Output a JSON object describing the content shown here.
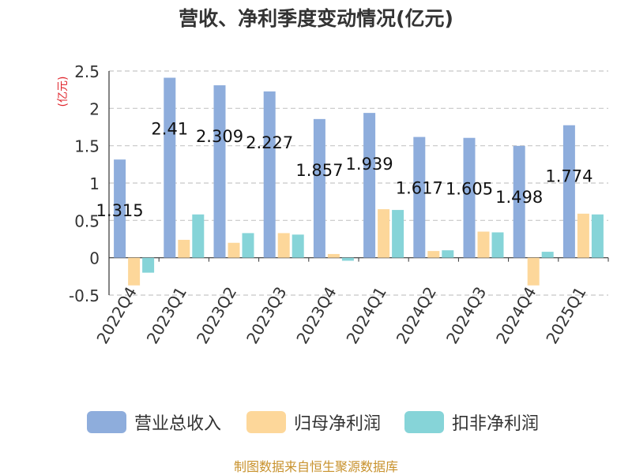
{
  "chart_data": {
    "type": "bar",
    "title": "营收、净利季度变动情况(亿元)",
    "ylabel": "(亿元)",
    "categories": [
      "2022Q4",
      "2023Q1",
      "2023Q2",
      "2023Q3",
      "2023Q4",
      "2024Q1",
      "2024Q2",
      "2024Q3",
      "2024Q4",
      "2025Q1"
    ],
    "series": [
      {
        "name": "营业总收入",
        "color": "#8eaddc",
        "values": [
          1.315,
          2.41,
          2.309,
          2.227,
          1.857,
          1.939,
          1.617,
          1.605,
          1.498,
          1.774
        ]
      },
      {
        "name": "归母净利润",
        "color": "#fdd79a",
        "values": [
          -0.37,
          0.24,
          0.2,
          0.33,
          0.05,
          0.65,
          0.09,
          0.35,
          -0.37,
          0.59
        ]
      },
      {
        "name": "扣非净利润",
        "color": "#86d4d8",
        "values": [
          -0.2,
          0.58,
          0.33,
          0.31,
          -0.04,
          0.64,
          0.1,
          0.34,
          0.08,
          0.58
        ]
      }
    ],
    "data_labels": [
      "1.315",
      "2.41",
      "2.309",
      "2.227",
      "1.857",
      "1.939",
      "1.617",
      "1.605",
      "1.498",
      "1.774"
    ],
    "ylim": [
      -0.5,
      2.5
    ],
    "yticks": [
      "-0.5",
      "0",
      "0.5",
      "1",
      "1.5",
      "2",
      "2.5"
    ],
    "grid": true,
    "legend_position": "bottom"
  },
  "footer": {
    "source": "制图数据来自恒生聚源数据库"
  }
}
